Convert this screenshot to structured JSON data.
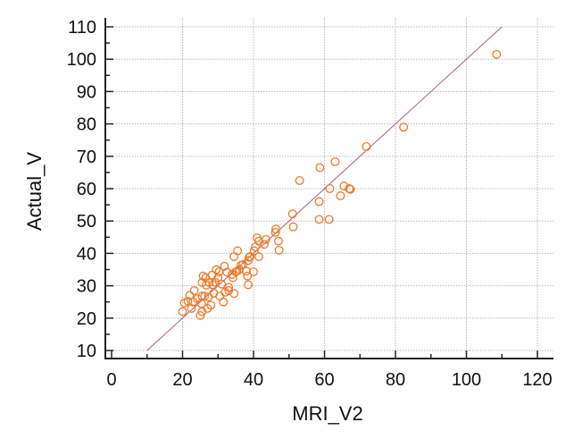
{
  "chart_data": {
    "type": "scatter",
    "title": "",
    "xlabel": "MRI_V2",
    "ylabel": "Actual_V",
    "xlim": [
      0,
      120
    ],
    "ylim": [
      8,
      112
    ],
    "x_ticks": [
      0,
      20,
      40,
      60,
      80,
      100,
      120
    ],
    "y_ticks": [
      10,
      20,
      30,
      40,
      50,
      60,
      70,
      80,
      90,
      100,
      110
    ],
    "grid": true,
    "reference_line": {
      "x": [
        10,
        110
      ],
      "y": [
        10,
        110
      ]
    },
    "colors": {
      "points": "#F07A2A",
      "line": "#A8607A",
      "grid": "#b8b8b8",
      "axis": "#222222"
    },
    "points": [
      [
        108.5,
        101.5
      ],
      [
        82.3,
        79
      ],
      [
        71.8,
        73
      ],
      [
        63,
        68.3
      ],
      [
        58.7,
        66.5
      ],
      [
        53,
        62.5
      ],
      [
        61.5,
        60
      ],
      [
        65.5,
        60.8
      ],
      [
        67,
        60
      ],
      [
        67.3,
        59.8
      ],
      [
        64.5,
        57.8
      ],
      [
        58.5,
        56
      ],
      [
        58.5,
        50.5
      ],
      [
        61.3,
        50.5
      ],
      [
        51,
        52.2
      ],
      [
        51.2,
        48.2
      ],
      [
        46.3,
        47.5
      ],
      [
        46.2,
        46.5
      ],
      [
        47,
        43.8
      ],
      [
        47.2,
        41
      ],
      [
        43.5,
        44.3
      ],
      [
        43,
        42.8
      ],
      [
        41,
        44.8
      ],
      [
        41.5,
        43.8
      ],
      [
        40.5,
        42
      ],
      [
        40.2,
        40.8
      ],
      [
        41.5,
        39
      ],
      [
        40,
        34.3
      ],
      [
        38.8,
        38.8
      ],
      [
        38.5,
        37.8
      ],
      [
        38,
        34.5
      ],
      [
        38.3,
        33
      ],
      [
        38.5,
        30.3
      ],
      [
        36.5,
        36.3
      ],
      [
        35.5,
        40.8
      ],
      [
        34.5,
        39
      ],
      [
        35,
        34.3
      ],
      [
        35.3,
        34.5
      ],
      [
        34.2,
        32.5
      ],
      [
        34,
        33.5
      ],
      [
        34.5,
        27.6
      ],
      [
        33,
        28.5
      ],
      [
        33,
        29.5
      ],
      [
        32.5,
        34.2
      ],
      [
        31.8,
        36
      ],
      [
        31.5,
        25
      ],
      [
        31,
        30.5
      ],
      [
        30.3,
        34.3
      ],
      [
        30,
        32.5
      ],
      [
        29.5,
        35
      ],
      [
        29.3,
        31
      ],
      [
        28.8,
        27.7
      ],
      [
        28.5,
        30.3
      ],
      [
        28.3,
        33.3
      ],
      [
        28,
        24
      ],
      [
        27.5,
        31
      ],
      [
        27.3,
        26.5
      ],
      [
        27,
        23
      ],
      [
        26.7,
        30.2
      ],
      [
        26.5,
        32.5
      ],
      [
        26.2,
        26.8
      ],
      [
        25.8,
        33
      ],
      [
        25.5,
        31
      ],
      [
        25.5,
        26.8
      ],
      [
        25.3,
        24.5
      ],
      [
        25.5,
        22
      ],
      [
        25,
        20.8
      ],
      [
        24.2,
        26
      ],
      [
        23.3,
        28.5
      ],
      [
        23,
        25
      ],
      [
        22.5,
        23
      ],
      [
        22,
        27
      ],
      [
        21.5,
        25.2
      ],
      [
        20.5,
        24.7
      ],
      [
        20,
        22
      ],
      [
        30.5,
        26.8
      ],
      [
        32,
        28
      ],
      [
        36,
        35
      ],
      [
        37,
        36.5
      ],
      [
        39,
        39
      ]
    ]
  }
}
